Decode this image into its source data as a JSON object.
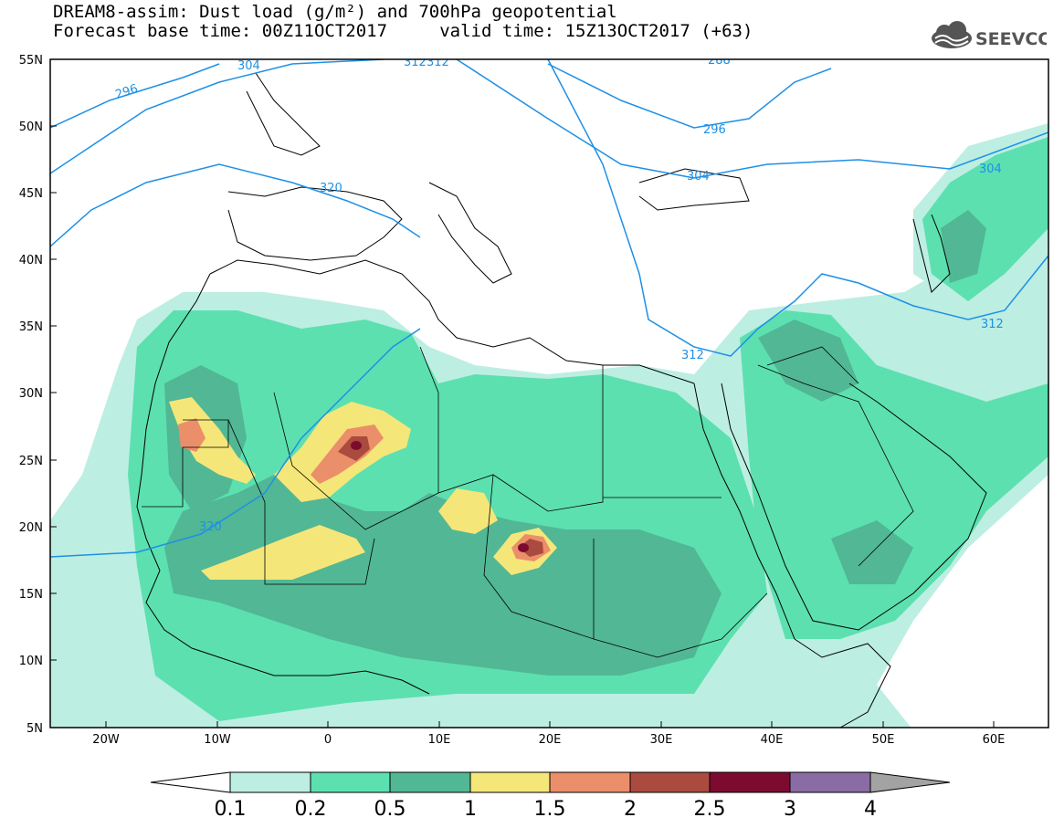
{
  "header": {
    "title_line1": "DREAM8-assim: Dust load (g/m²) and 700hPa geopotential",
    "title_line2": "Forecast base time: 00Z11OCT2017     valid time: 15Z13OCT2017 (+63)",
    "logo_text": "SEEVCCC"
  },
  "map": {
    "lat_labels": [
      "55N",
      "50N",
      "45N",
      "40N",
      "35N",
      "30N",
      "25N",
      "20N",
      "15N",
      "10N",
      "5N"
    ],
    "lon_labels": [
      "20W",
      "10W",
      "0",
      "10E",
      "20E",
      "30E",
      "40E",
      "50E",
      "60E"
    ],
    "contour_labels": [
      "296",
      "304",
      "312",
      "320",
      "304",
      "296",
      "304",
      "312",
      "312",
      "320",
      "288",
      "312"
    ]
  },
  "colorbar": {
    "levels": [
      "0.1",
      "0.2",
      "0.5",
      "1",
      "1.5",
      "2",
      "2.5",
      "3",
      "4"
    ],
    "colors": [
      "#ffffff",
      "#bdeee2",
      "#5ce0b0",
      "#52b794",
      "#f5e679",
      "#eb8e6a",
      "#ab4b3f",
      "#7d0a2f",
      "#8a6ba4",
      "#a3a3a3"
    ]
  },
  "colors": {
    "land_border": "#000000",
    "geopotential_contour": "#1e90e6",
    "dust_01": "#bdeee2",
    "dust_02": "#5ce0b0",
    "dust_05": "#52b794",
    "dust_1": "#f5e679",
    "dust_15": "#eb8e6a",
    "dust_2": "#ab4b3f",
    "dust_25": "#7d0a2f"
  }
}
